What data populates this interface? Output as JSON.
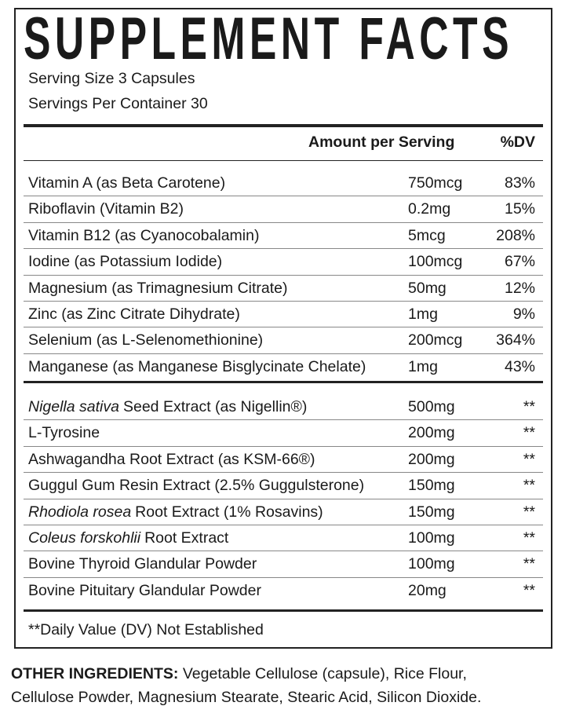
{
  "header": {
    "title": "SUPPLEMENT FACTS",
    "serving_size": "Serving Size 3 Capsules",
    "servings_per_container": "Servings Per Container 30"
  },
  "table": {
    "columns": [
      "Amount per Serving",
      "%DV"
    ],
    "vitamins": [
      {
        "name": "Vitamin A (as Beta Carotene)",
        "amount": "750mcg",
        "dv": "83%"
      },
      {
        "name": "Riboflavin (Vitamin B2)",
        "amount": "0.2mg",
        "dv": "15%"
      },
      {
        "name": "Vitamin B12 (as Cyanocobalamin)",
        "amount": "5mcg",
        "dv": "208%"
      },
      {
        "name": "Iodine (as Potassium Iodide)",
        "amount": "100mcg",
        "dv": "67%"
      },
      {
        "name": "Magnesium (as Trimagnesium Citrate)",
        "amount": "50mg",
        "dv": "12%"
      },
      {
        "name": "Zinc (as Zinc Citrate Dihydrate)",
        "amount": "1mg",
        "dv": "9%"
      },
      {
        "name": "Selenium (as L-Selenomethionine)",
        "amount": "200mcg",
        "dv": "364%"
      },
      {
        "name": "Manganese (as Manganese Bisglycinate Chelate)",
        "amount": "1mg",
        "dv": "43%"
      }
    ],
    "extracts": [
      {
        "name_italic": "Nigella sativa",
        "name": "Seed Extract (as Nigellin®)",
        "amount": "500mg",
        "dv": "**"
      },
      {
        "name": "L-Tyrosine",
        "amount": "200mg",
        "dv": "**"
      },
      {
        "name": "Ashwagandha Root Extract (as KSM-66®)",
        "amount": "200mg",
        "dv": "**"
      },
      {
        "name": "Guggul Gum Resin Extract (2.5% Guggulsterone)",
        "amount": "150mg",
        "dv": "**"
      },
      {
        "name_italic": "Rhodiola rosea",
        "name": "Root Extract (1% Rosavins)",
        "amount": "150mg",
        "dv": "**"
      },
      {
        "name_italic": "Coleus forskohlii",
        "name": "Root Extract",
        "amount": "100mg",
        "dv": "**"
      },
      {
        "name": "Bovine Thyroid Glandular Powder",
        "amount": "100mg",
        "dv": "**"
      },
      {
        "name": "Bovine Pituitary Glandular Powder",
        "amount": "20mg",
        "dv": "**"
      }
    ]
  },
  "footnote": "**Daily Value (DV) Not Established",
  "other_ingredients": {
    "label": "OTHER INGREDIENTS:",
    "text": "Vegetable Cellulose (capsule), Rice Flour, Cellulose Powder, Magnesium Stearate, Stearic Acid, Silicon Dioxide."
  }
}
